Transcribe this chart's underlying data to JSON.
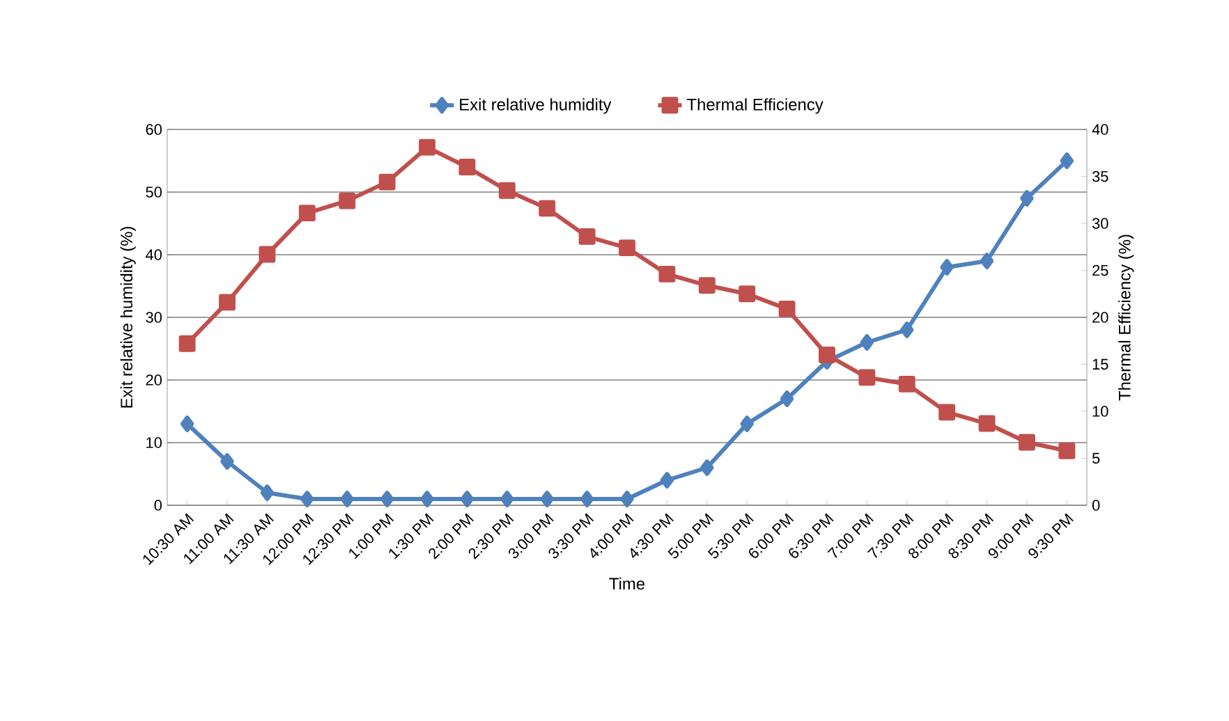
{
  "chart_data": {
    "type": "line",
    "xlabel": "Time",
    "ylabel": "Exit relative humidity (%)",
    "y2label": "Thermal Efficiency (%)",
    "categories": [
      "10:30 AM",
      "11:00 AM",
      "11:30 AM",
      "12:00 PM",
      "12:30 PM",
      "1:00 PM",
      "1:30 PM",
      "2:00 PM",
      "2:30 PM",
      "3:00 PM",
      "3:30 PM",
      "4:00 PM",
      "4:30 PM",
      "5:00 PM",
      "5:30 PM",
      "6:00 PM",
      "6:30 PM",
      "7:00 PM",
      "7:30 PM",
      "8:00 PM",
      "8:30 PM",
      "9:00 PM",
      "9:30 PM"
    ],
    "series": [
      {
        "name": "Exit relative humidity",
        "color": "#4f81bd",
        "marker": "diamond",
        "values": [
          13,
          7,
          2,
          1,
          1,
          1,
          1,
          1,
          1,
          1,
          1,
          1,
          4,
          6,
          13,
          17,
          23,
          26,
          28,
          38,
          39,
          49,
          55
        ]
      },
      {
        "name": "Thermal Efficiency",
        "color": "#c0504d",
        "marker": "square",
        "axis": "y2",
        "values": [
          17.2,
          21.6,
          26.7,
          31.1,
          32.4,
          34.4,
          38.1,
          36,
          33.5,
          31.6,
          28.6,
          27.4,
          24.6,
          23.4,
          22.5,
          20.9,
          16,
          13.6,
          12.9,
          9.9,
          8.7,
          6.7,
          5.8
        ]
      }
    ],
    "ylim": [
      0,
      60
    ],
    "yticks": [
      0,
      10,
      20,
      30,
      40,
      50,
      60
    ],
    "y2lim": [
      0,
      40
    ],
    "y2ticks": [
      0,
      5,
      10,
      15,
      20,
      25,
      30,
      35,
      40
    ],
    "grid": "y",
    "legend": "top"
  }
}
